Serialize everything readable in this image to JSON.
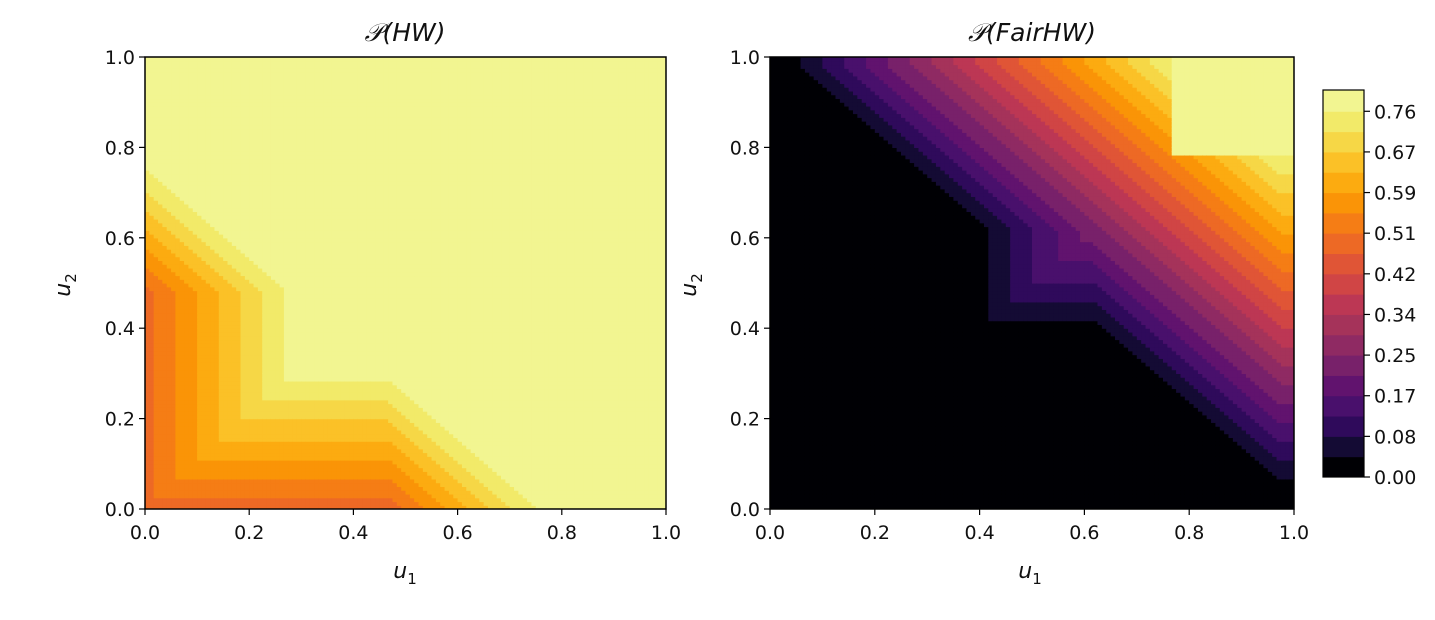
{
  "chart_data": [
    {
      "type": "heatmap",
      "subtype": "filled-contour",
      "title": "𝒫(HW)",
      "xlabel": "u1",
      "ylabel": "u2",
      "xlim": [
        0.0,
        1.0
      ],
      "ylim": [
        0.0,
        1.0
      ],
      "xticks": [
        "0.0",
        "0.2",
        "0.4",
        "0.6",
        "0.8",
        "1.0"
      ],
      "yticks": [
        "0.0",
        "0.2",
        "0.4",
        "0.6",
        "0.8",
        "1.0"
      ],
      "colormap": "inferno",
      "description_of_field": "value is 0.76+ (light yellow) outside the lower-left region; contour bands descend toward the origin, staircase-shaped boundary around u1≈0.27,u2≈0.28 and the diagonal u1+u2≈0.75",
      "max_region_boundary": [
        [
          0.0,
          0.75
        ],
        [
          0.27,
          0.48
        ],
        [
          0.27,
          0.28
        ],
        [
          0.47,
          0.28
        ],
        [
          0.75,
          0.0
        ]
      ],
      "band_spacing": 0.042
    },
    {
      "type": "heatmap",
      "subtype": "filled-contour",
      "title": "𝒫(FairHW)",
      "xlabel": "u1",
      "ylabel": "u2",
      "xlim": [
        0.0,
        1.0
      ],
      "ylim": [
        0.0,
        1.0
      ],
      "xticks": [
        "0.0",
        "0.2",
        "0.4",
        "0.6",
        "0.8",
        "1.0"
      ],
      "yticks": [
        "0.0",
        "0.2",
        "0.4",
        "0.6",
        "0.8",
        "1.0"
      ],
      "colormap": "inferno",
      "zero_region_boundary": [
        [
          0.0,
          1.0
        ],
        [
          0.42,
          0.62
        ],
        [
          0.42,
          0.42
        ],
        [
          0.62,
          0.42
        ],
        [
          1.0,
          0.04
        ]
      ],
      "max_region_boundary": [
        [
          0.77,
          1.0
        ],
        [
          0.77,
          0.78
        ],
        [
          1.0,
          0.78
        ]
      ],
      "band_spacing": 0.042
    }
  ],
  "colorbar": {
    "tick_labels": [
      "0.76",
      "0.67",
      "0.59",
      "0.51",
      "0.42",
      "0.34",
      "0.25",
      "0.17",
      "0.08",
      "0.00"
    ],
    "levels": [
      0.0,
      0.042,
      0.084,
      0.126,
      0.168,
      0.21,
      0.252,
      0.294,
      0.336,
      0.378,
      0.42,
      0.462,
      0.504,
      0.546,
      0.588,
      0.63,
      0.672,
      0.714,
      0.756,
      0.8
    ],
    "colors": [
      "#000004",
      "#140b34",
      "#2f0a5b",
      "#49106c",
      "#61136e",
      "#78216a",
      "#8f2a63",
      "#a5335a",
      "#bc3754",
      "#d04545",
      "#e05536",
      "#ed6925",
      "#f57d15",
      "#fa9407",
      "#fcab10",
      "#fbc127",
      "#f6d746",
      "#f2ea69",
      "#f2f591"
    ]
  }
}
